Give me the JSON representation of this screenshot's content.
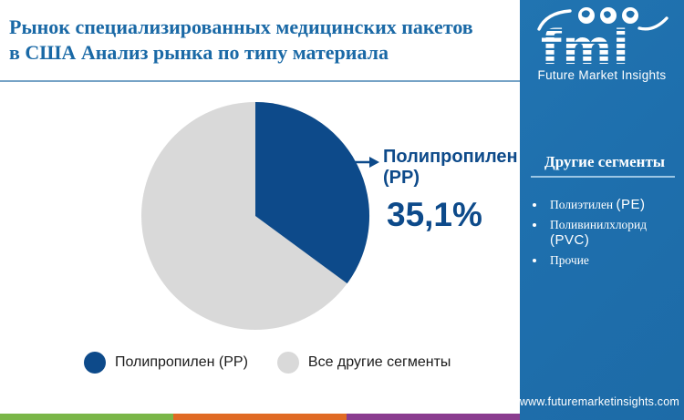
{
  "header": {
    "title_line1": "Рынок специализированных медицинских пакетов",
    "title_line2": "в США Анализ рынка  по типу материала",
    "title_color": "#1a69a6"
  },
  "chart_data": {
    "type": "pie",
    "title": "Рынок специализированных медицинских пакетов в США Анализ рынка по типу материала",
    "labels": [
      "Полипропилен (PP)",
      "Все другие сегменты"
    ],
    "values": [
      35.1,
      64.9
    ],
    "colors": [
      "#0d4a8a",
      "#d9d9d9"
    ],
    "start_angle_deg": 0,
    "direction": "clockwise",
    "legend_position": "bottom",
    "annotation": {
      "label": "Полипропилен (PP)",
      "value": "35,1%"
    }
  },
  "callout": {
    "label": "Полипропилен (PP)",
    "value": "35,1%",
    "text_color": "#0d4a8a"
  },
  "legend": {
    "items": [
      {
        "label": "Полипропилен (PP)",
        "color": "#0d4a8a"
      },
      {
        "label": "Все другие сегменты",
        "color": "#d9d9d9"
      }
    ]
  },
  "sidebar": {
    "background_color": "#1e6fad",
    "logo": {
      "text": "fmi",
      "subtitle": "Future Market Insights"
    },
    "segments": {
      "heading": "Другие сегменты",
      "items": [
        "Полиэтилен (PE)",
        "Поливинилхлорид (PVC)",
        "Прочие"
      ]
    },
    "url": "www.futuremarketinsights.com"
  },
  "footer": {
    "stripe_colors": [
      "#7ab648",
      "#e06a24",
      "#8a3d8f"
    ]
  }
}
